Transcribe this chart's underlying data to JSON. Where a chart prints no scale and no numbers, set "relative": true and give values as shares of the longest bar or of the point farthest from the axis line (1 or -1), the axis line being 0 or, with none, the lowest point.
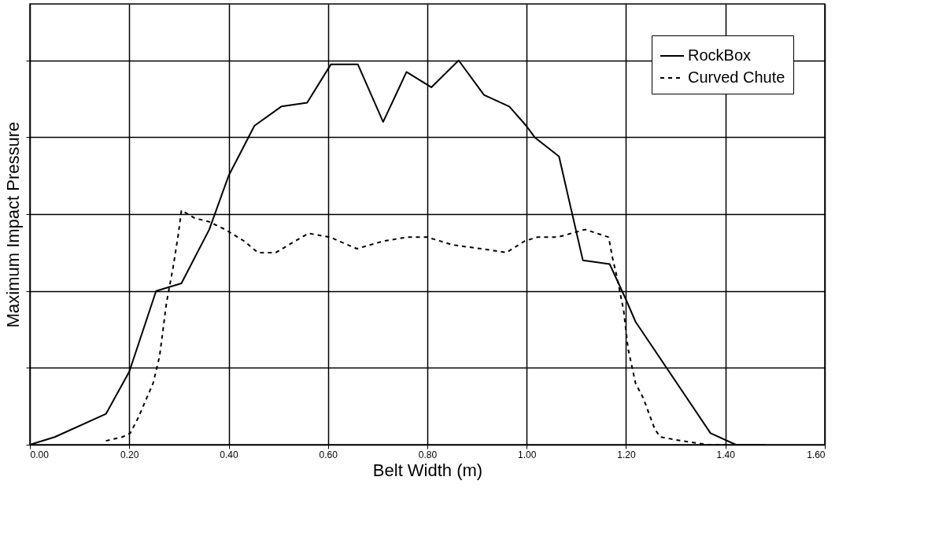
{
  "chart_data": {
    "type": "line",
    "relative": true,
    "xlabel": "Belt Width (m)",
    "ylabel": "Maximum Impact Pressure",
    "xlim": [
      0,
      1.6
    ],
    "xticks": [
      {
        "value": 0,
        "label": "0.00"
      },
      {
        "value": 0.2,
        "label": "0.20"
      },
      {
        "value": 0.4,
        "label": "0.40"
      },
      {
        "value": 0.6,
        "label": "0.60"
      },
      {
        "value": 0.8,
        "label": "0.80"
      },
      {
        "value": 1.0,
        "label": "1.00"
      },
      {
        "value": 1.2,
        "label": "1.20"
      },
      {
        "value": 1.4,
        "label": "1.40"
      },
      {
        "value": 1.6,
        "label": "1.60"
      }
    ],
    "grid": true,
    "legend": "top right",
    "marker": "none",
    "series": [
      {
        "name": "RockBox",
        "color": "#000000",
        "line_style": "solid",
        "x": [
          0,
          0.05,
          0.153,
          0.2,
          0.254,
          0.305,
          0.361,
          0.4,
          0.452,
          0.506,
          0.558,
          0.606,
          0.66,
          0.711,
          0.758,
          0.808,
          0.863,
          0.914,
          0.965,
          0.999,
          1.016,
          1.065,
          1.113,
          1.167,
          1.199,
          1.219,
          1.37,
          1.421,
          1.44,
          1.48
        ],
        "values": [
          0,
          0.02,
          0.08,
          0.19,
          0.4,
          0.42,
          0.56,
          0.7,
          0.83,
          0.88,
          0.89,
          0.99,
          0.99,
          0.84,
          0.97,
          0.93,
          1,
          0.91,
          0.88,
          0.83,
          0.8,
          0.75,
          0.48,
          0.47,
          0.38,
          0.32,
          0.03,
          0,
          0,
          0
        ]
      },
      {
        "name": "Curved Chute",
        "color": "#000000",
        "line_style": "dashed",
        "x": [
          0.153,
          0.186,
          0.202,
          0.218,
          0.248,
          0.261,
          0.275,
          0.288,
          0.299,
          0.305,
          0.331,
          0.361,
          0.393,
          0.431,
          0.459,
          0.495,
          0.534,
          0.561,
          0.604,
          0.658,
          0.712,
          0.76,
          0.8,
          0.851,
          0.908,
          0.959,
          0.996,
          1.021,
          1.062,
          1.118,
          1.165,
          1.172,
          1.181,
          1.195,
          1.204,
          1.219,
          1.235,
          1.258,
          1.269,
          1.312,
          1.364,
          1.4
        ],
        "values": [
          0.01,
          0.02,
          0.03,
          0.07,
          0.16,
          0.23,
          0.37,
          0.46,
          0.55,
          0.61,
          0.59,
          0.58,
          0.56,
          0.53,
          0.5,
          0.5,
          0.53,
          0.55,
          0.54,
          0.51,
          0.53,
          0.54,
          0.54,
          0.52,
          0.51,
          0.5,
          0.53,
          0.54,
          0.54,
          0.56,
          0.54,
          0.49,
          0.44,
          0.35,
          0.25,
          0.16,
          0.12,
          0.04,
          0.02,
          0.01,
          0,
          0
        ]
      }
    ]
  }
}
